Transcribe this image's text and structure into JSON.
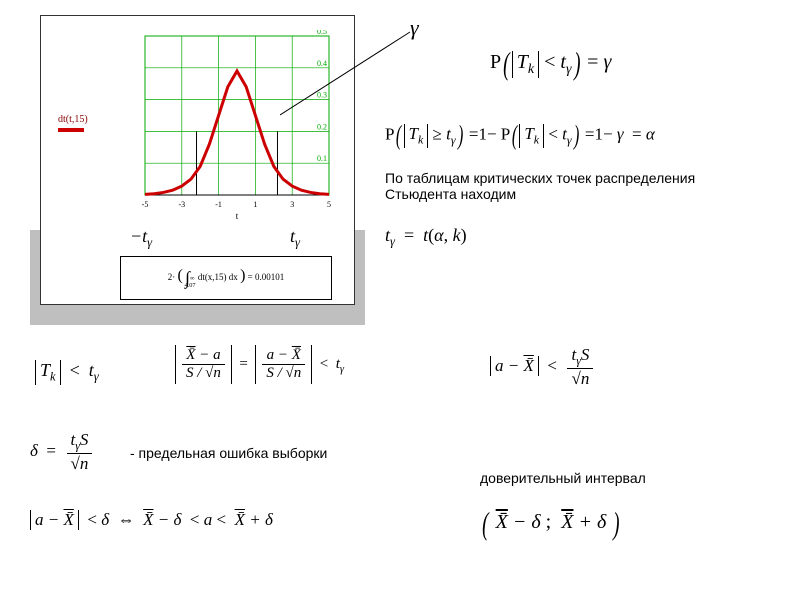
{
  "chart": {
    "legend_label": "dt(t,15)",
    "legend_color": "#cc0000",
    "x_range": [
      -5,
      5
    ],
    "y_range": [
      0,
      0.5
    ],
    "x_ticks": [
      -5,
      -3,
      -1,
      1,
      3,
      5
    ],
    "y_ticks": [
      0.1,
      0.2,
      0.3,
      0.4,
      0.5
    ],
    "x_label": "t",
    "curve_points": [
      [
        -5,
        0.002
      ],
      [
        -4.5,
        0.004
      ],
      [
        -4,
        0.008
      ],
      [
        -3.5,
        0.015
      ],
      [
        -3,
        0.028
      ],
      [
        -2.5,
        0.05
      ],
      [
        -2,
        0.09
      ],
      [
        -1.5,
        0.16
      ],
      [
        -1,
        0.25
      ],
      [
        -0.5,
        0.34
      ],
      [
        0,
        0.39
      ],
      [
        0.5,
        0.34
      ],
      [
        1,
        0.25
      ],
      [
        1.5,
        0.16
      ],
      [
        2,
        0.09
      ],
      [
        2.5,
        0.05
      ],
      [
        3,
        0.028
      ],
      [
        3.5,
        0.015
      ],
      [
        4,
        0.008
      ],
      [
        4.5,
        0.004
      ],
      [
        5,
        0.002
      ]
    ],
    "curve_color": "#cc0000",
    "curve_width": 3,
    "grid_color": "#00aa00",
    "axis_color": "#000000",
    "critical_verticals": [
      -2.2,
      2.2
    ],
    "critical_line_color": "#000000",
    "nt_minus": "−t",
    "nt_plus": "t",
    "nt_sub": "γ"
  },
  "integral": {
    "formula_left": "2·",
    "integrand": "dt(x,15) dx",
    "lower": "4.07",
    "upper": "∞",
    "eq": "= 0.00101"
  },
  "annotations": {
    "gamma": "γ"
  },
  "equations": {
    "eq1": {
      "P": "P",
      "open": "(",
      "abs_open": "|",
      "T": "T",
      "k": "k",
      "lt": "<",
      "t": "t",
      "g": "γ",
      "close": ")",
      "eqs": "="
    },
    "eq2_text_full": "По таблицам критических точек распределения Стьюдента находим",
    "eq2_p1": "P",
    "eq2_ge": "≥",
    "eq2_eq": "=",
    "eq2_one": "1",
    "eq2_minus": "−",
    "eq2_alpha": "α",
    "ttab": {
      "t": "t",
      "g": "γ",
      "eq": "=",
      "fn": "t",
      "open": "(",
      "a": "α",
      "comma": ",",
      "k": "k",
      "close": ")"
    },
    "row3": {
      "Tk_lt_tg": "|Tₖ| < t_γ",
      "Xbar": "X̄",
      "a": "a",
      "S": "S",
      "sqrtn": "√n"
    },
    "delta_label": "- предельная ошибка выборки",
    "ci_label": "доверительный интервал",
    "delta": "δ",
    "aXbar": "a − X̄",
    "lt": "<",
    "iff": "⇔",
    "semicolon": ";"
  }
}
